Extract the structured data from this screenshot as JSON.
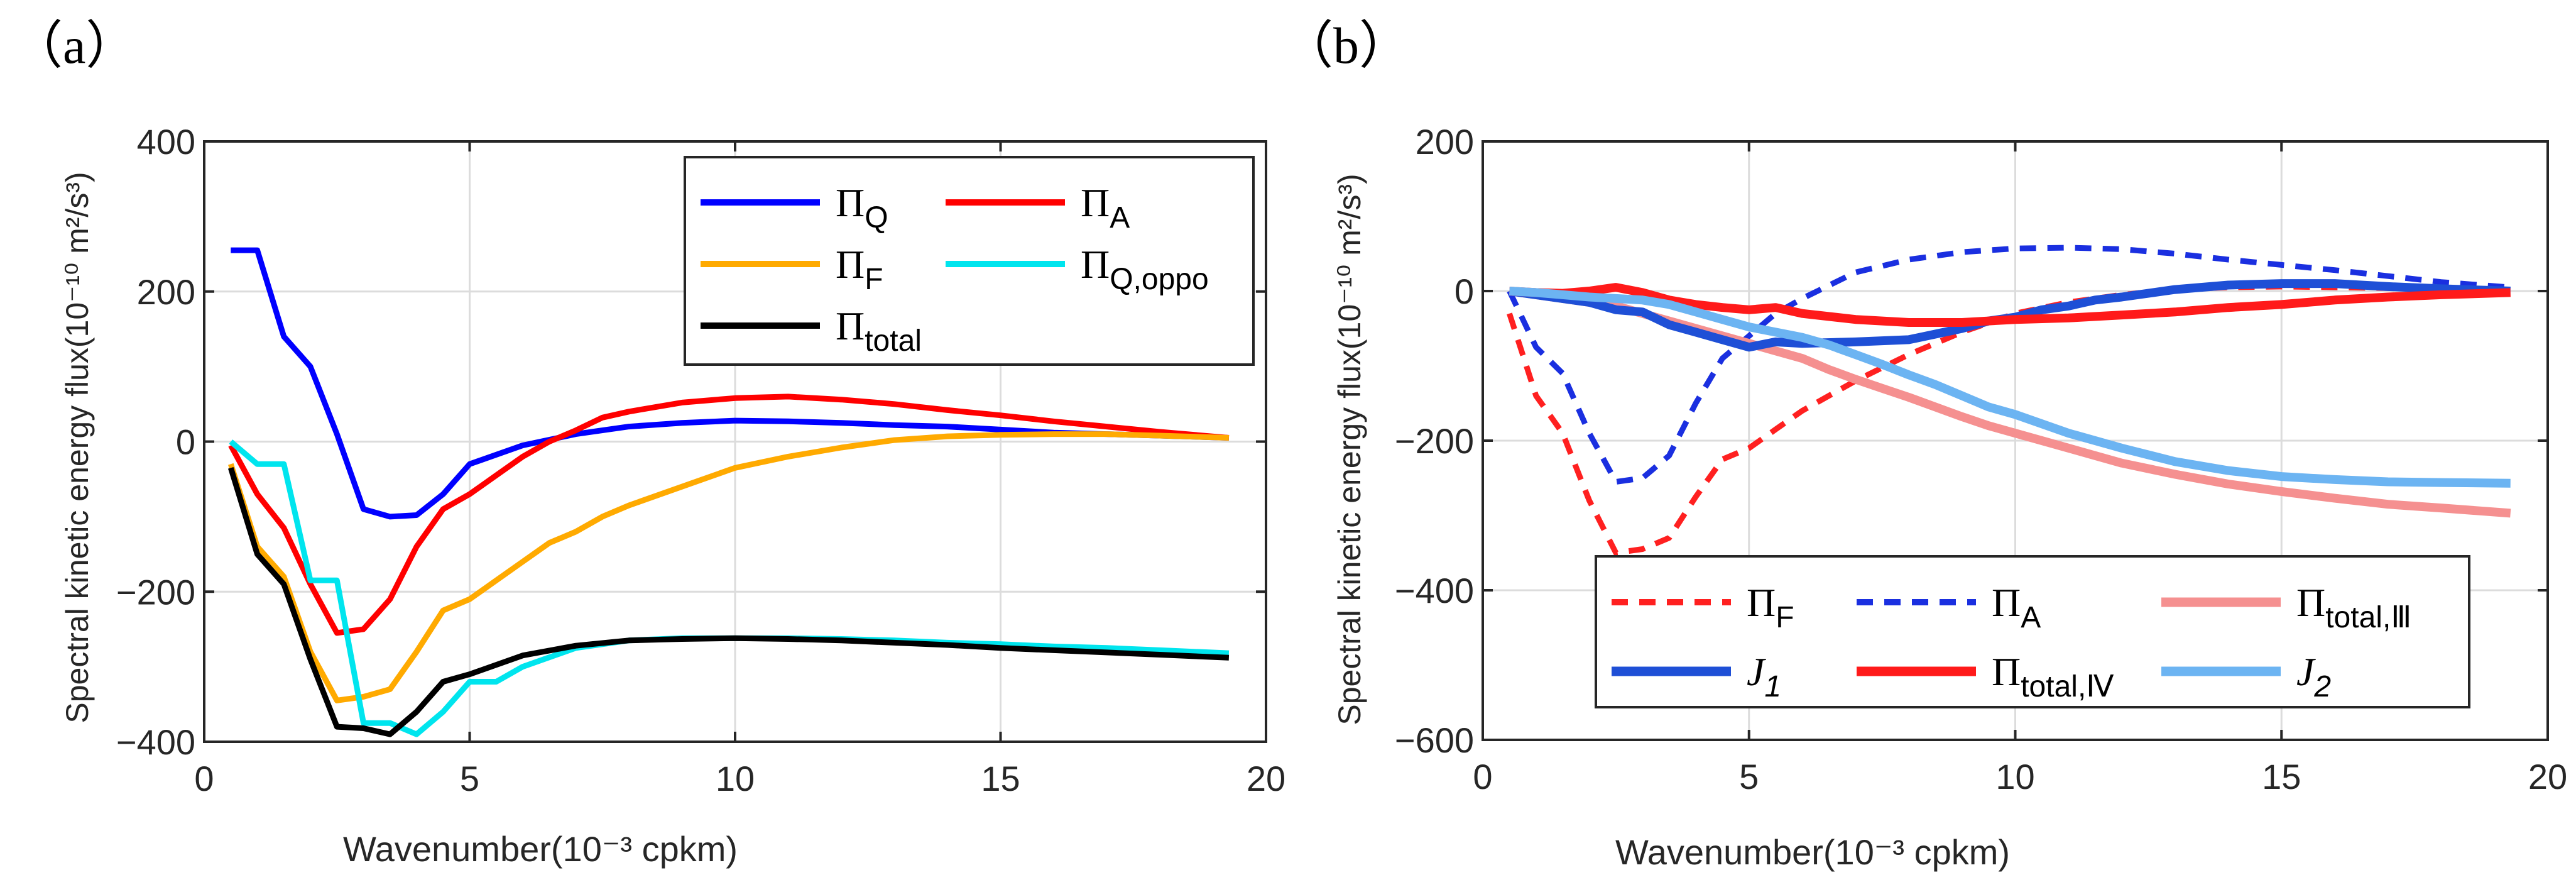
{
  "chart_data": [
    {
      "type": "line",
      "panel_label": "（a）",
      "xlabel": "Wavenumber(10⁻³ cpkm)",
      "ylabel": "Spectral kinetic energy flux(10⁻¹⁰ m²/s³)",
      "xlim": [
        0,
        20
      ],
      "ylim": [
        -400,
        400
      ],
      "xticks": [
        0,
        5,
        10,
        15,
        20
      ],
      "yticks": [
        -400,
        -200,
        0,
        200,
        400
      ],
      "xtick_labels": [
        "0",
        "5",
        "10",
        "15",
        "20"
      ],
      "ytick_labels": [
        "−400",
        "−200",
        "0",
        "200",
        "400"
      ],
      "grid": true,
      "legend_position": "top-right",
      "legend_columns": 2,
      "series": [
        {
          "name": "Π_Q",
          "label_main": "Π",
          "label_sub": "Q",
          "color": "#0000ff",
          "dash": "solid",
          "width": "normal",
          "x": [
            0.5,
            1.0,
            1.5,
            2.0,
            2.5,
            3.0,
            3.5,
            4.0,
            4.5,
            5.0,
            6.0,
            7.0,
            8.0,
            9.0,
            10.0,
            11.0,
            12.0,
            13.0,
            14.0,
            15.0,
            16.0,
            17.0,
            18.0,
            19.3
          ],
          "y": [
            255,
            255,
            140,
            100,
            10,
            -90,
            -100,
            -98,
            -70,
            -30,
            -5,
            10,
            20,
            25,
            28,
            27,
            25,
            22,
            20,
            16,
            12,
            10,
            8,
            5
          ]
        },
        {
          "name": "Π_A",
          "label_main": "Π",
          "label_sub": "A",
          "color": "#ff0000",
          "dash": "solid",
          "width": "normal",
          "x": [
            0.5,
            1.0,
            1.5,
            2.0,
            2.5,
            3.0,
            3.5,
            4.0,
            4.5,
            5.0,
            5.5,
            6.0,
            6.5,
            7.0,
            7.5,
            8.0,
            9.0,
            10.0,
            11.0,
            12.0,
            13.0,
            14.0,
            15.0,
            16.0,
            17.0,
            18.0,
            19.3
          ],
          "y": [
            -5,
            -70,
            -115,
            -190,
            -255,
            -250,
            -210,
            -140,
            -90,
            -70,
            -45,
            -20,
            0,
            15,
            32,
            40,
            52,
            58,
            60,
            56,
            50,
            42,
            35,
            27,
            20,
            13,
            5
          ]
        },
        {
          "name": "Π_F",
          "label_main": "Π",
          "label_sub": "F",
          "color": "#ffaa00",
          "dash": "solid",
          "width": "normal",
          "x": [
            0.5,
            1.0,
            1.5,
            2.0,
            2.5,
            3.0,
            3.5,
            4.0,
            4.5,
            5.0,
            5.5,
            6.0,
            6.5,
            7.0,
            7.5,
            8.0,
            9.0,
            10.0,
            11.0,
            12.0,
            13.0,
            14.0,
            15.0,
            16.0,
            17.0,
            18.0,
            19.3
          ],
          "y": [
            -30,
            -140,
            -180,
            -280,
            -345,
            -340,
            -330,
            -280,
            -225,
            -210,
            -185,
            -160,
            -135,
            -120,
            -100,
            -85,
            -60,
            -35,
            -20,
            -8,
            2,
            7,
            9,
            10,
            10,
            8,
            5
          ]
        },
        {
          "name": "Π_Q,oppo",
          "label_main": "Π",
          "label_sub": "Q,oppo",
          "color": "#00e5ee",
          "dash": "solid",
          "width": "normal",
          "x": [
            0.5,
            1.0,
            1.5,
            2.0,
            2.5,
            3.0,
            3.5,
            4.0,
            4.5,
            5.0,
            5.5,
            6.0,
            7.0,
            8.0,
            9.0,
            10.0,
            11.0,
            12.0,
            13.0,
            14.0,
            15.0,
            16.0,
            17.0,
            18.0,
            19.3
          ],
          "y": [
            0,
            -30,
            -30,
            -185,
            -185,
            -375,
            -375,
            -390,
            -360,
            -320,
            -320,
            -300,
            -275,
            -265,
            -262,
            -262,
            -262,
            -263,
            -265,
            -268,
            -270,
            -273,
            -275,
            -278,
            -282
          ]
        },
        {
          "name": "Π_total",
          "label_main": "Π",
          "label_sub": "total",
          "color": "#000000",
          "dash": "solid",
          "width": "normal",
          "x": [
            0.5,
            1.0,
            1.5,
            2.0,
            2.5,
            3.0,
            3.5,
            4.0,
            4.5,
            5.0,
            6.0,
            7.0,
            8.0,
            9.0,
            10.0,
            11.0,
            12.0,
            13.0,
            14.0,
            15.0,
            16.0,
            17.0,
            18.0,
            19.3
          ],
          "y": [
            -35,
            -150,
            -190,
            -290,
            -380,
            -382,
            -390,
            -360,
            -320,
            -310,
            -285,
            -272,
            -265,
            -263,
            -262,
            -263,
            -265,
            -268,
            -271,
            -275,
            -278,
            -281,
            -284,
            -288
          ]
        }
      ]
    },
    {
      "type": "line",
      "panel_label": "（b）",
      "xlabel": "Wavenumber(10⁻³ cpkm)",
      "ylabel": "Spectral kinetic energy flux(10⁻¹⁰ m²/s³)",
      "xlim": [
        0,
        20
      ],
      "ylim": [
        -600,
        200
      ],
      "xticks": [
        0,
        5,
        10,
        15,
        20
      ],
      "yticks": [
        -600,
        -400,
        -200,
        0,
        200
      ],
      "xtick_labels": [
        "0",
        "5",
        "10",
        "15",
        "20"
      ],
      "ytick_labels": [
        "−600",
        "−400",
        "−200",
        "0",
        "200"
      ],
      "grid": true,
      "legend_position": "bottom",
      "legend_columns": 3,
      "series": [
        {
          "name": "Π_F",
          "label_main": "Π",
          "label_sub": "F",
          "color": "#ff2020",
          "dash": "dashed",
          "width": "normal",
          "x": [
            0.5,
            1.0,
            1.5,
            2.0,
            2.5,
            3.0,
            3.5,
            4.0,
            4.5,
            5.0,
            5.5,
            6.0,
            7.0,
            8.0,
            9.0,
            10.0,
            11.0,
            12.0,
            13.0,
            14.0,
            15.0,
            16.0,
            17.0,
            18.0,
            19.3
          ],
          "y": [
            -30,
            -140,
            -190,
            -280,
            -350,
            -345,
            -330,
            -275,
            -225,
            -210,
            -185,
            -160,
            -120,
            -85,
            -55,
            -30,
            -15,
            -5,
            2,
            5,
            6,
            5,
            4,
            3,
            2
          ]
        },
        {
          "name": "Π_A",
          "label_main": "Π",
          "label_sub": "A",
          "color": "#1a2fe0",
          "dash": "dashed",
          "width": "normal",
          "x": [
            0.5,
            1.0,
            1.5,
            2.0,
            2.5,
            3.0,
            3.5,
            4.0,
            4.5,
            5.0,
            5.5,
            6.0,
            7.0,
            8.0,
            9.0,
            10.0,
            11.0,
            12.0,
            13.0,
            14.0,
            15.0,
            16.0,
            17.0,
            18.0,
            19.3
          ],
          "y": [
            0,
            -75,
            -110,
            -190,
            -255,
            -250,
            -220,
            -150,
            -90,
            -60,
            -30,
            -10,
            25,
            42,
            52,
            57,
            58,
            56,
            50,
            42,
            35,
            28,
            20,
            12,
            5
          ]
        },
        {
          "name": "Π_total,III",
          "label_main": "Π",
          "label_sub": "total,Ⅲ",
          "color": "#f59090",
          "dash": "solid",
          "width": "thick",
          "x": [
            0.5,
            1.0,
            1.5,
            2.0,
            2.5,
            3.0,
            3.5,
            4.0,
            4.5,
            5.0,
            5.5,
            6.0,
            6.5,
            7.0,
            7.5,
            8.0,
            8.5,
            9.0,
            9.5,
            10.0,
            11.0,
            12.0,
            13.0,
            14.0,
            15.0,
            16.0,
            17.0,
            18.0,
            19.3
          ],
          "y": [
            0,
            -5,
            -10,
            -15,
            -20,
            -30,
            -40,
            -50,
            -60,
            -70,
            -80,
            -90,
            -105,
            -118,
            -130,
            -142,
            -155,
            -168,
            -180,
            -190,
            -210,
            -230,
            -245,
            -258,
            -268,
            -277,
            -285,
            -290,
            -297
          ]
        },
        {
          "name": "J_1",
          "label_main": "J",
          "label_sub": "1",
          "color": "#1e4fd6",
          "dash": "solid",
          "width": "thick",
          "x": [
            0.5,
            1.0,
            1.5,
            2.0,
            2.5,
            3.0,
            3.5,
            4.0,
            4.5,
            5.0,
            5.5,
            6.0,
            7.0,
            8.0,
            9.0,
            9.5,
            10.0,
            10.5,
            11.0,
            11.5,
            12.0,
            13.0,
            14.0,
            15.0,
            16.0,
            17.0,
            18.0,
            19.3
          ],
          "y": [
            0,
            -5,
            -10,
            -15,
            -25,
            -28,
            -45,
            -55,
            -65,
            -75,
            -68,
            -70,
            -68,
            -65,
            -50,
            -40,
            -35,
            -25,
            -20,
            -12,
            -8,
            2,
            8,
            10,
            10,
            6,
            3,
            0
          ]
        },
        {
          "name": "Π_total,IV",
          "label_main": "Π",
          "label_sub": "total,Ⅳ",
          "color": "#ff1a1a",
          "dash": "solid",
          "width": "thick",
          "x": [
            0.5,
            1.0,
            1.5,
            2.0,
            2.5,
            3.0,
            3.5,
            4.0,
            4.5,
            5.0,
            5.5,
            6.0,
            7.0,
            8.0,
            9.0,
            10.0,
            11.0,
            12.0,
            13.0,
            14.0,
            15.0,
            16.0,
            17.0,
            18.0,
            19.3
          ],
          "y": [
            0,
            -2,
            -3,
            0,
            5,
            -2,
            -12,
            -18,
            -22,
            -25,
            -22,
            -30,
            -38,
            -42,
            -42,
            -38,
            -36,
            -32,
            -28,
            -22,
            -18,
            -12,
            -8,
            -5,
            -2
          ]
        },
        {
          "name": "J_2",
          "label_main": "J",
          "label_sub": "2",
          "color": "#6cb4f2",
          "dash": "solid",
          "width": "thick",
          "x": [
            0.5,
            1.0,
            1.5,
            2.0,
            2.5,
            3.0,
            3.5,
            4.0,
            4.5,
            5.0,
            5.5,
            6.0,
            6.5,
            7.0,
            7.5,
            8.0,
            8.5,
            9.0,
            9.5,
            10.0,
            11.0,
            12.0,
            13.0,
            14.0,
            15.0,
            16.0,
            17.0,
            18.0,
            19.3
          ],
          "y": [
            0,
            -2,
            -5,
            -8,
            -10,
            -12,
            -18,
            -28,
            -38,
            -48,
            -55,
            -62,
            -72,
            -85,
            -98,
            -112,
            -125,
            -140,
            -155,
            -165,
            -190,
            -210,
            -228,
            -240,
            -248,
            -252,
            -255,
            -256,
            -257
          ]
        }
      ]
    }
  ]
}
